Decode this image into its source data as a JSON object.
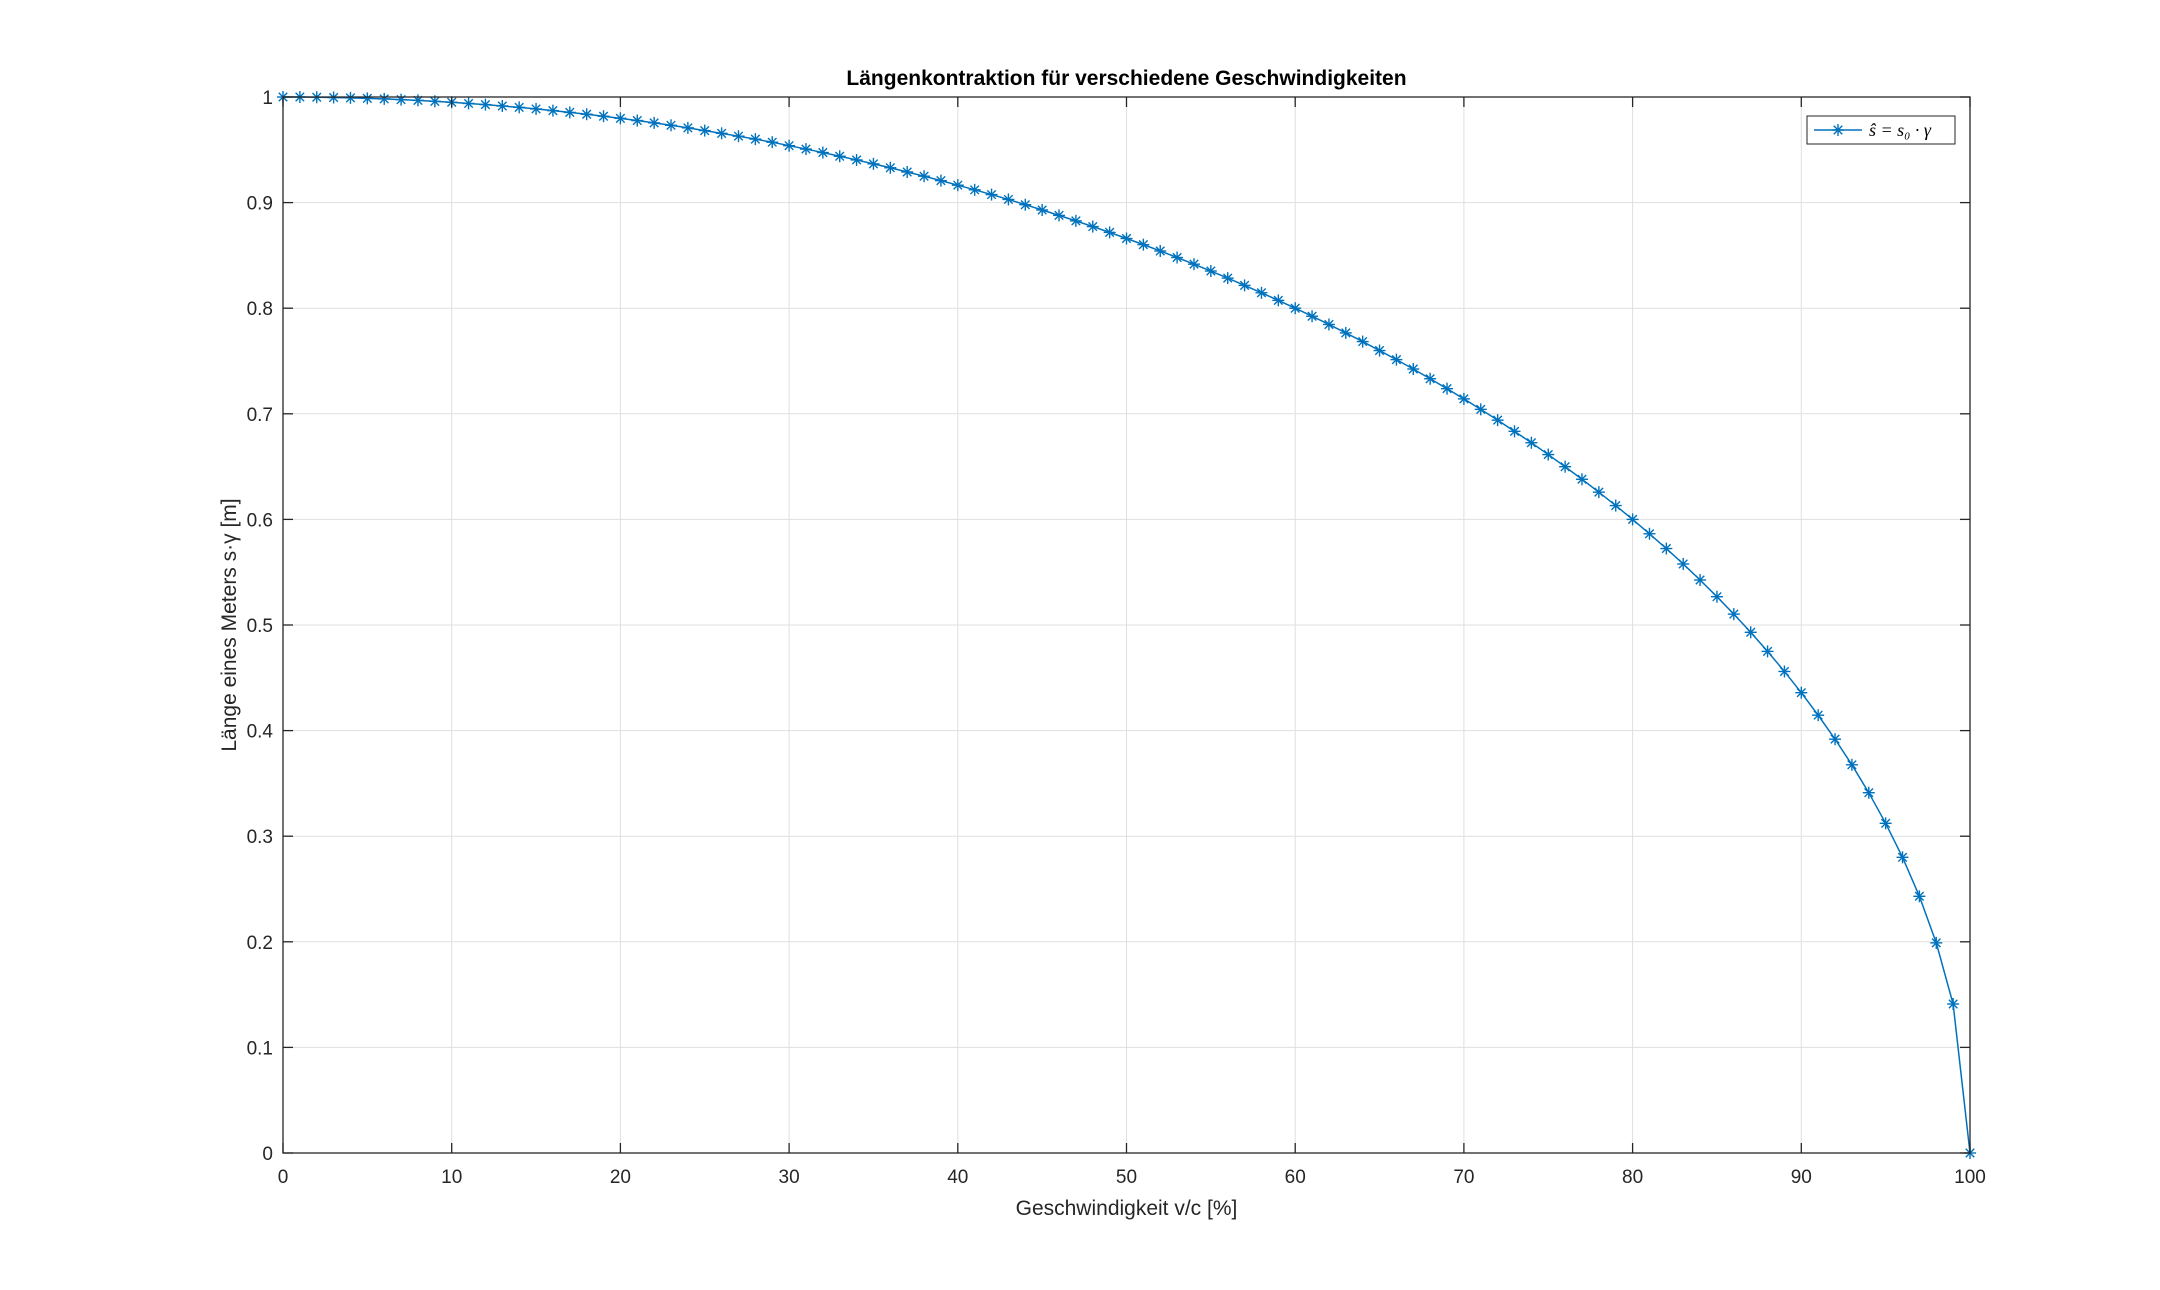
{
  "chart_data": {
    "type": "line",
    "title": "Längenkontraktion für verschiedene Geschwindigkeiten",
    "xlabel": "Geschwindigkeit v/c [%]",
    "ylabel": "Länge eines Meters s·γ [m]",
    "xlim": [
      0,
      100
    ],
    "ylim": [
      0,
      1
    ],
    "xticks": [
      "0",
      "10",
      "20",
      "30",
      "40",
      "50",
      "60",
      "70",
      "80",
      "90",
      "100"
    ],
    "yticks": [
      "0",
      "0.1",
      "0.2",
      "0.3",
      "0.4",
      "0.5",
      "0.6",
      "0.7",
      "0.8",
      "0.9",
      "1"
    ],
    "grid": true,
    "legend_position": "top-right",
    "marker": "asterisk",
    "series_color": "#0072BD",
    "series": [
      {
        "name": "ŝ = s₀ · γ",
        "x": [
          0,
          1,
          2,
          3,
          4,
          5,
          6,
          7,
          8,
          9,
          10,
          11,
          12,
          13,
          14,
          15,
          16,
          17,
          18,
          19,
          20,
          21,
          22,
          23,
          24,
          25,
          26,
          27,
          28,
          29,
          30,
          31,
          32,
          33,
          34,
          35,
          36,
          37,
          38,
          39,
          40,
          41,
          42,
          43,
          44,
          45,
          46,
          47,
          48,
          49,
          50,
          51,
          52,
          53,
          54,
          55,
          56,
          57,
          58,
          59,
          60,
          61,
          62,
          63,
          64,
          65,
          66,
          67,
          68,
          69,
          70,
          71,
          72,
          73,
          74,
          75,
          76,
          77,
          78,
          79,
          80,
          81,
          82,
          83,
          84,
          85,
          86,
          87,
          88,
          89,
          90,
          91,
          92,
          93,
          94,
          95,
          96,
          97,
          98,
          99,
          100
        ],
        "y": [
          1.0,
          1.0,
          0.9998,
          0.9995,
          0.9992,
          0.9987,
          0.9982,
          0.9975,
          0.9968,
          0.9959,
          0.995,
          0.9939,
          0.9928,
          0.9915,
          0.9902,
          0.9887,
          0.9871,
          0.9854,
          0.9837,
          0.9818,
          0.9798,
          0.9777,
          0.9755,
          0.9732,
          0.9708,
          0.9682,
          0.9656,
          0.9629,
          0.9601,
          0.9572,
          0.9539,
          0.9507,
          0.9474,
          0.9439,
          0.9404,
          0.9367,
          0.933,
          0.929,
          0.925,
          0.9208,
          0.9165,
          0.9121,
          0.9076,
          0.903,
          0.898,
          0.893,
          0.8879,
          0.8827,
          0.8773,
          0.8718,
          0.866,
          0.8602,
          0.8542,
          0.848,
          0.8417,
          0.8352,
          0.8285,
          0.8216,
          0.8146,
          0.8074,
          0.8,
          0.7924,
          0.7846,
          0.7766,
          0.7684,
          0.7599,
          0.7513,
          0.7424,
          0.7332,
          0.7238,
          0.7141,
          0.7042,
          0.694,
          0.6834,
          0.6726,
          0.6614,
          0.6499,
          0.638,
          0.6258,
          0.6131,
          0.6,
          0.5864,
          0.5724,
          0.5578,
          0.5426,
          0.5268,
          0.5103,
          0.4931,
          0.475,
          0.456,
          0.4359,
          0.4146,
          0.3919,
          0.3676,
          0.3412,
          0.3122,
          0.28,
          0.2431,
          0.199,
          0.1411,
          0.0
        ]
      }
    ]
  }
}
